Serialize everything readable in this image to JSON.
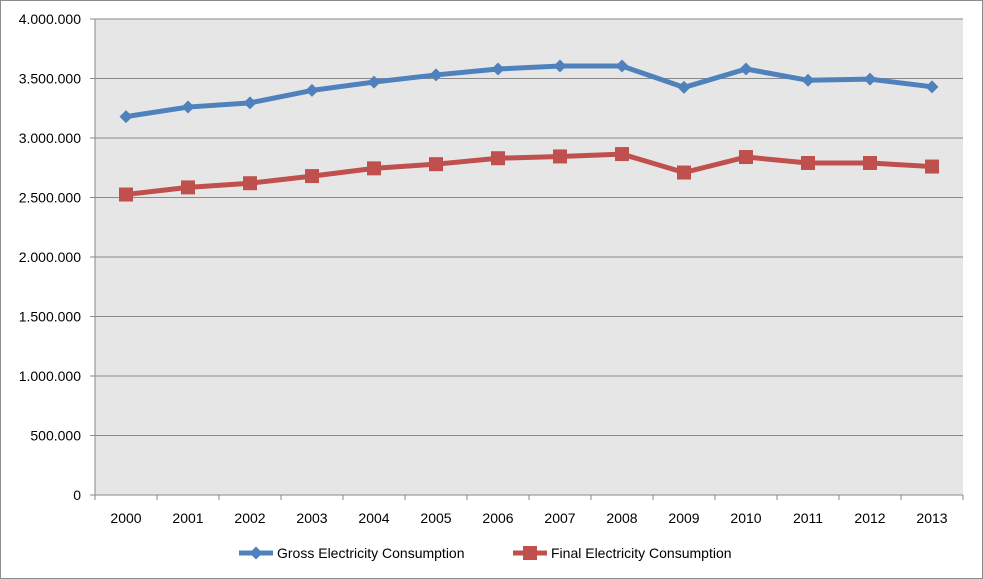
{
  "chart_data": {
    "type": "line",
    "title": "",
    "xlabel": "",
    "ylabel": "",
    "categories": [
      "2000",
      "2001",
      "2002",
      "2003",
      "2004",
      "2005",
      "2006",
      "2007",
      "2008",
      "2009",
      "2010",
      "2011",
      "2012",
      "2013"
    ],
    "ylim": [
      0,
      4000000
    ],
    "y_ticks": [
      0,
      500000,
      1000000,
      1500000,
      2000000,
      2500000,
      3000000,
      3500000,
      4000000
    ],
    "y_tick_labels": [
      "0",
      "500.000",
      "1.000.000",
      "1.500.000",
      "2.000.000",
      "2.500.000",
      "3.000.000",
      "3.500.000",
      "4.000.000"
    ],
    "grid": true,
    "legend_position": "bottom",
    "plot_background": "#e6e6e6",
    "series": [
      {
        "name": "Gross Electricity Consumption",
        "color": "#4f81bd",
        "marker": "diamond",
        "values": [
          3180000,
          3260000,
          3295000,
          3400000,
          3470000,
          3530000,
          3580000,
          3605000,
          3605000,
          3425000,
          3580000,
          3485000,
          3495000,
          3430000
        ]
      },
      {
        "name": "Final Electricity Consumption",
        "color": "#c0504d",
        "marker": "square",
        "values": [
          2525000,
          2585000,
          2620000,
          2680000,
          2745000,
          2780000,
          2830000,
          2845000,
          2865000,
          2710000,
          2840000,
          2790000,
          2790000,
          2760000
        ]
      }
    ]
  }
}
